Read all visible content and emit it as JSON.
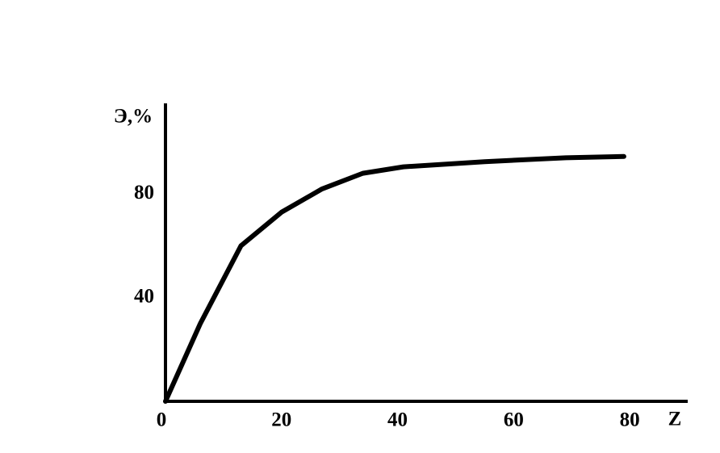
{
  "chart_data": {
    "type": "line",
    "x_label": "Z",
    "y_label": "Э,%",
    "x": [
      0,
      6,
      13,
      20,
      27,
      34,
      41,
      55,
      69,
      79
    ],
    "values": [
      0,
      30,
      60,
      73,
      82,
      88,
      90.5,
      92.5,
      94,
      94.5
    ],
    "color": "#000000",
    "xlim": [
      0,
      90
    ],
    "ylim": [
      0,
      115
    ],
    "xticks": [
      0,
      20,
      40,
      60,
      80
    ],
    "yticks": [
      40,
      80
    ]
  }
}
